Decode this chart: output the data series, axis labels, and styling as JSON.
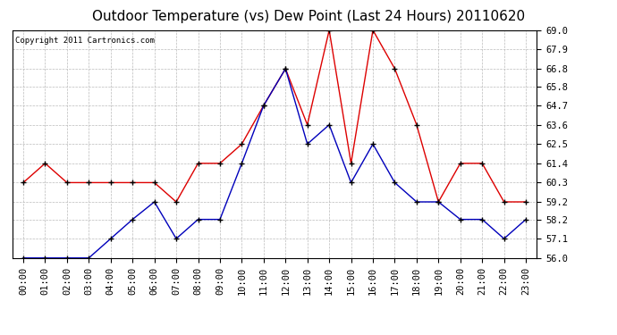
{
  "title": "Outdoor Temperature (vs) Dew Point (Last 24 Hours) 20110620",
  "copyright": "Copyright 2011 Cartronics.com",
  "hours": [
    "00:00",
    "01:00",
    "02:00",
    "03:00",
    "04:00",
    "05:00",
    "06:00",
    "07:00",
    "08:00",
    "09:00",
    "10:00",
    "11:00",
    "12:00",
    "13:00",
    "14:00",
    "15:00",
    "16:00",
    "17:00",
    "18:00",
    "19:00",
    "20:00",
    "21:00",
    "22:00",
    "23:00"
  ],
  "temp_red": [
    60.3,
    61.4,
    60.3,
    60.3,
    60.3,
    60.3,
    60.3,
    59.2,
    61.4,
    61.4,
    62.5,
    64.7,
    66.8,
    63.6,
    69.0,
    61.4,
    69.0,
    66.8,
    63.6,
    59.2,
    61.4,
    61.4,
    59.2,
    59.2
  ],
  "dew_blue": [
    56.0,
    56.0,
    56.0,
    56.0,
    57.1,
    58.2,
    59.2,
    57.1,
    58.2,
    58.2,
    61.4,
    64.7,
    66.8,
    62.5,
    63.6,
    60.3,
    62.5,
    60.3,
    59.2,
    59.2,
    58.2,
    58.2,
    57.1,
    58.2
  ],
  "ylim": [
    56.0,
    69.0
  ],
  "yticks": [
    56.0,
    57.1,
    58.2,
    59.2,
    60.3,
    61.4,
    62.5,
    63.6,
    64.7,
    65.8,
    66.8,
    67.9,
    69.0
  ],
  "bg_color": "#ffffff",
  "plot_bg": "#ffffff",
  "grid_color": "#bbbbbb",
  "red_color": "#dd0000",
  "blue_color": "#0000bb",
  "title_fontsize": 11,
  "tick_fontsize": 7.5,
  "copyright_fontsize": 6.5
}
